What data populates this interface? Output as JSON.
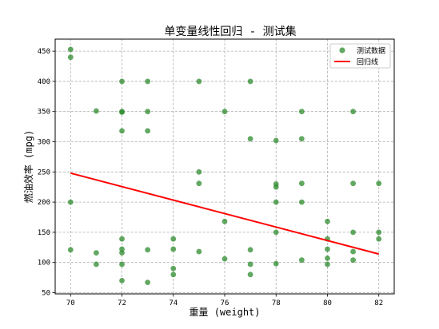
{
  "chart_data": {
    "type": "scatter",
    "title": "单变量线性回归 - 测试集",
    "xlabel": "重量 (weight)",
    "ylabel": "燃油效率 (mpg)",
    "xlim": [
      69.4,
      82.6
    ],
    "ylim": [
      48,
      470
    ],
    "xticks": [
      70,
      72,
      74,
      76,
      78,
      80,
      82
    ],
    "yticks": [
      50,
      100,
      150,
      200,
      250,
      300,
      350,
      400,
      450
    ],
    "grid": true,
    "legend_position": "top-right",
    "series": [
      {
        "name": "测试数据",
        "kind": "scatter",
        "color": "#2e8b2e",
        "points": [
          [
            70,
            453
          ],
          [
            70,
            440
          ],
          [
            70,
            200
          ],
          [
            70,
            121
          ],
          [
            71,
            351
          ],
          [
            71,
            116
          ],
          [
            71,
            97
          ],
          [
            72,
            400
          ],
          [
            72,
            350
          ],
          [
            72,
            349
          ],
          [
            72,
            318
          ],
          [
            72,
            139
          ],
          [
            72,
            122
          ],
          [
            72,
            116
          ],
          [
            72,
            97
          ],
          [
            72,
            70
          ],
          [
            73,
            400
          ],
          [
            73,
            350
          ],
          [
            73,
            318
          ],
          [
            73,
            121
          ],
          [
            73,
            67
          ],
          [
            74,
            139
          ],
          [
            74,
            122
          ],
          [
            74,
            90
          ],
          [
            74,
            80
          ],
          [
            75,
            400
          ],
          [
            75,
            250
          ],
          [
            75,
            231
          ],
          [
            75,
            118
          ],
          [
            76,
            350
          ],
          [
            76,
            168
          ],
          [
            76,
            106
          ],
          [
            77,
            400
          ],
          [
            77,
            305
          ],
          [
            77,
            121
          ],
          [
            77,
            97
          ],
          [
            77,
            80
          ],
          [
            78,
            302
          ],
          [
            78,
            230
          ],
          [
            78,
            225
          ],
          [
            78,
            200
          ],
          [
            78,
            150
          ],
          [
            78,
            98
          ],
          [
            79,
            350
          ],
          [
            79,
            305
          ],
          [
            79,
            231
          ],
          [
            79,
            200
          ],
          [
            79,
            104
          ],
          [
            80,
            168
          ],
          [
            80,
            139
          ],
          [
            80,
            122
          ],
          [
            80,
            107
          ],
          [
            80,
            97
          ],
          [
            81,
            350
          ],
          [
            81,
            231
          ],
          [
            81,
            150
          ],
          [
            81,
            118
          ],
          [
            81,
            104
          ],
          [
            82,
            231
          ],
          [
            82,
            150
          ],
          [
            82,
            139
          ]
        ]
      },
      {
        "name": "回归线",
        "kind": "line",
        "color": "#ff0000",
        "points": [
          [
            70,
            248
          ],
          [
            82,
            114
          ]
        ]
      }
    ]
  }
}
